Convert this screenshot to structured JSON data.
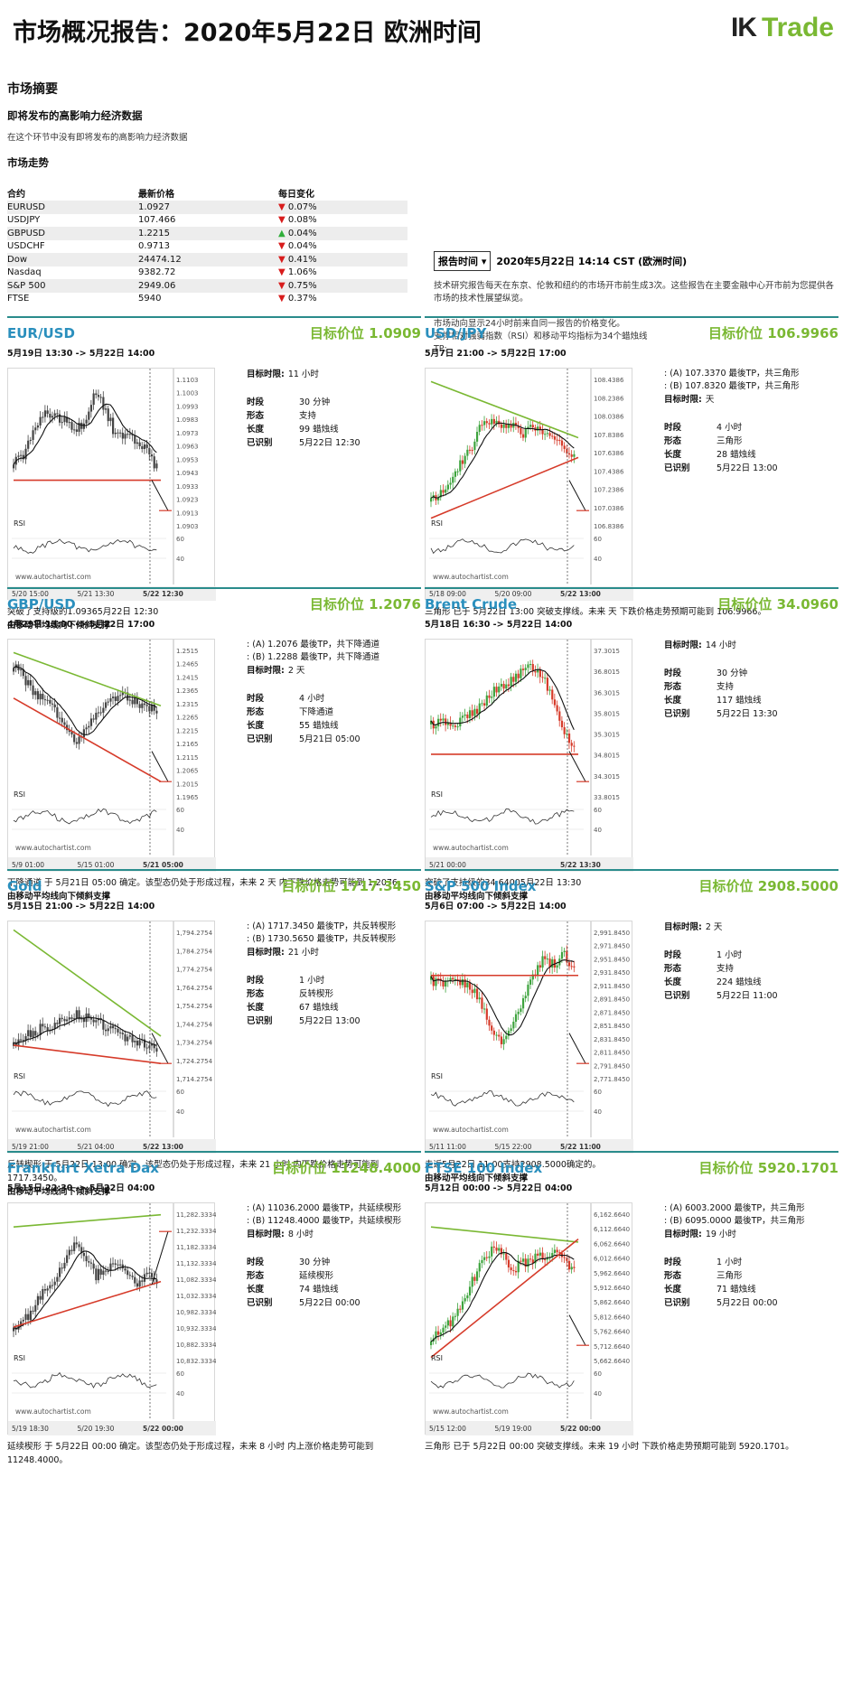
{
  "header": {
    "title": "市场概况报告：2020年5月22日 欧洲时间",
    "logo_mark": "IK",
    "logo_word": "Trade"
  },
  "summary": {
    "heading": "市场摘要",
    "sub_heading": "即将发布的高影响力经济数据",
    "no_data_note": "在这个环节中没有即将发布的高影响力经济数据",
    "trend_heading": "市场走势"
  },
  "quotes": {
    "headers": [
      "合约",
      "最新价格",
      "每日变化"
    ],
    "rows": [
      {
        "name": "EURUSD",
        "price": "1.0927",
        "arrow": "▼",
        "change": "0.07%",
        "dir": "down"
      },
      {
        "name": "USDJPY",
        "price": "107.466",
        "arrow": "▼",
        "change": "0.08%",
        "dir": "down"
      },
      {
        "name": "GBPUSD",
        "price": "1.2215",
        "arrow": "▲",
        "change": "0.04%",
        "dir": "up"
      },
      {
        "name": "USDCHF",
        "price": "0.9713",
        "arrow": "▼",
        "change": "0.04%",
        "dir": "down"
      },
      {
        "name": "Dow",
        "price": "24474.12",
        "arrow": "▼",
        "change": "0.41%",
        "dir": "down"
      },
      {
        "name": "Nasdaq",
        "price": "9382.72",
        "arrow": "▼",
        "change": "1.06%",
        "dir": "down"
      },
      {
        "name": "S&P 500",
        "price": "2949.06",
        "arrow": "▼",
        "change": "0.75%",
        "dir": "down"
      },
      {
        "name": "FTSE",
        "price": "5940",
        "arrow": "▼",
        "change": "0.37%",
        "dir": "down"
      }
    ]
  },
  "report": {
    "button": "报告时间",
    "time": "2020年5月22日 14:14 CST (欧洲时间)",
    "para1": "技术研究报告每天在东京、伦敦和纽约的市场开市前生成3次。这些报告在主要金融中心开市前为您提供各市场的技术性展望纵览。",
    "para2a": "市场动向显示24小时前来自同一报告的价格变化。",
    "para2b": "支撑相对强弱指数（RSI）和移动平均指标为34个蜡烛线",
    "para2c": "TP:"
  },
  "labels": {
    "target_prefix": "目标价位",
    "target_time": "目标时限:",
    "period": "时段",
    "pattern": "形态",
    "length": "长度",
    "identified": "已识别",
    "rsi": "RSI",
    "watermark": "www.autochartist.com"
  },
  "panels": [
    {
      "name": "EUR/USD",
      "target": "1.0909",
      "range": "5月19日 13:30 -> 5月22日 14:00",
      "tp_a": "",
      "tp_b": "",
      "target_time": "11 小时",
      "period": "30 分钟",
      "pattern": "支持",
      "length": "99 蜡烛线",
      "identified": "5月22日 12:30",
      "desc1": "突破了支持级的1.09365月22日 12:30",
      "desc2": "由移动平均线向下倾斜支撑",
      "y_ticks": [
        "1.1103",
        "1.1003",
        "1.0993",
        "1.0983",
        "1.0973",
        "1.0963",
        "1.0953",
        "1.0943",
        "1.0933",
        "1.0923",
        "1.0913",
        "1.0903"
      ],
      "x_ticks": [
        "5/20 15:00",
        "5/21 13:30",
        "5/22 12:30"
      ],
      "rsi_ticks": [
        "60",
        "40"
      ]
    },
    {
      "name": "USD/JPY",
      "target": "106.9966",
      "range": "5月7日 21:00 -> 5月22日 17:00",
      "tp_a": "(A) 107.3370 最後TP，共三角形",
      "tp_b": "(B) 107.8320 最後TP，共三角形",
      "target_time": "天",
      "period": "4 小时",
      "pattern": "三角形",
      "length": "28 蜡烛线",
      "identified": "5月22日 13:00",
      "desc1": "三角形 已于 5月22日 13:00 突破支撑线。未来 天 下跌价格走势预期可能到 106.9966。",
      "desc2": "",
      "y_ticks": [
        "108.4386",
        "108.2386",
        "108.0386",
        "107.8386",
        "107.6386",
        "107.4386",
        "107.2386",
        "107.0386",
        "106.8386"
      ],
      "x_ticks": [
        "5/18 09:00",
        "5/20 09:00",
        "5/22 13:00"
      ],
      "rsi_ticks": [
        "60",
        "40"
      ]
    },
    {
      "name": "GBP/USD",
      "target": "1.2076",
      "range": "4月29日 13:00 -> 5月22日 17:00",
      "tp_a": "(A) 1.2076 最後TP，共下降通道",
      "tp_b": "(B) 1.2288 最後TP，共下降通道",
      "target_time": "2 天",
      "period": "4 小时",
      "pattern": "下降通道",
      "length": "55 蜡烛线",
      "identified": "5月21日 05:00",
      "desc1": "下降通道 于 5月21日 05:00 确定。该型态仍处于形成过程，未来 2 天 内下跌价格走势可能到 1.2076。",
      "desc2": "由移动平均线向下倾斜支撑",
      "y_ticks": [
        "1.2515",
        "1.2465",
        "1.2415",
        "1.2365",
        "1.2315",
        "1.2265",
        "1.2215",
        "1.2165",
        "1.2115",
        "1.2065",
        "1.2015",
        "1.1965"
      ],
      "x_ticks": [
        "5/9 01:00",
        "5/15 01:00",
        "5/21 05:00"
      ],
      "rsi_ticks": [
        "60",
        "40"
      ]
    },
    {
      "name": "Brent Crude",
      "target": "34.0960",
      "range": "5月18日 16:30 -> 5月22日 14:00",
      "tp_a": "",
      "tp_b": "",
      "target_time": "14 小时",
      "period": "30 分钟",
      "pattern": "支持",
      "length": "117 蜡烛线",
      "identified": "5月22日 13:30",
      "desc1": "突破了支持级的34.64005月22日 13:30",
      "desc2": "由移动平均线向下倾斜支撑",
      "y_ticks": [
        "37.3015",
        "36.8015",
        "36.3015",
        "35.8015",
        "35.3015",
        "34.8015",
        "34.3015",
        "33.8015"
      ],
      "x_ticks": [
        "5/21 00:00",
        "5/22 13:30"
      ],
      "rsi_ticks": [
        "60",
        "40"
      ]
    },
    {
      "name": "Gold",
      "target": "1717.3450",
      "range": "5月15日 21:00 -> 5月22日 14:00",
      "tp_a": "(A) 1717.3450 最後TP，共反转楔形",
      "tp_b": "(B) 1730.5650 最後TP，共反转楔形",
      "target_time": "21 小时",
      "period": "1 小时",
      "pattern": "反转楔形",
      "length": "67 蜡烛线",
      "identified": "5月22日 13:00",
      "desc1": "反转楔形 于 5月22日 13:00 确定。该型态仍处于形成过程，未来 21 小时 内下跌价格走势可能到 1717.3450。",
      "desc2": "由移动平均线向下倾斜支撑",
      "y_ticks": [
        "1,794.2754",
        "1,784.2754",
        "1,774.2754",
        "1,764.2754",
        "1,754.2754",
        "1,744.2754",
        "1,734.2754",
        "1,724.2754",
        "1,714.2754"
      ],
      "x_ticks": [
        "5/19 21:00",
        "5/21 04:00",
        "5/22 13:00"
      ],
      "rsi_ticks": [
        "60",
        "40"
      ]
    },
    {
      "name": "S&P 500 Index",
      "target": "2908.5000",
      "range": "5月6日 07:00 -> 5月22日 14:00",
      "tp_a": "",
      "tp_b": "",
      "target_time": "2 天",
      "period": "1 小时",
      "pattern": "支持",
      "length": "224 蜡烛线",
      "identified": "5月22日 11:00",
      "desc1": "走近5月22日 11:00支持2908.5000确定的。",
      "desc2": "由移动平均线向下倾斜支撑",
      "y_ticks": [
        "2,991.8450",
        "2,971.8450",
        "2,951.8450",
        "2,931.8450",
        "2,911.8450",
        "2,891.8450",
        "2,871.8450",
        "2,851.8450",
        "2,831.8450",
        "2,811.8450",
        "2,791.8450",
        "2,771.8450"
      ],
      "x_ticks": [
        "5/11 11:00",
        "5/15 22:00",
        "5/22 11:00"
      ],
      "rsi_ticks": [
        "60",
        "40"
      ]
    },
    {
      "name": "Frankfurt Xetra Dax",
      "target": "11248.4000",
      "range": "5月15日 22:30 -> 5月22日 04:00",
      "tp_a": "(A) 11036.2000 最後TP，共延续楔形",
      "tp_b": "(B) 11248.4000 最後TP，共延续楔形",
      "target_time": "8 小时",
      "period": "30 分钟",
      "pattern": "延续楔形",
      "length": "74 蜡烛线",
      "identified": "5月22日 00:00",
      "desc1": "延续楔形 于 5月22日 00:00 确定。该型态仍处于形成过程，未来 8 小时 内上涨价格走势可能到 11248.4000。",
      "desc2": "",
      "y_ticks": [
        "11,282.3334",
        "11,232.3334",
        "11,182.3334",
        "11,132.3334",
        "11,082.3334",
        "11,032.3334",
        "10,982.3334",
        "10,932.3334",
        "10,882.3334",
        "10,832.3334"
      ],
      "x_ticks": [
        "5/19 18:30",
        "5/20 19:30",
        "5/22 00:00"
      ],
      "rsi_ticks": [
        "60",
        "40"
      ]
    },
    {
      "name": "FTSE 100 Index",
      "target": "5920.1701",
      "range": "5月12日 00:00 -> 5月22日 04:00",
      "tp_a": "(A) 6003.2000 最後TP，共三角形",
      "tp_b": "(B) 6095.0000 最後TP，共三角形",
      "target_time": "19 小时",
      "period": "1 小时",
      "pattern": "三角形",
      "length": "71 蜡烛线",
      "identified": "5月22日 00:00",
      "desc1": "三角形 已于 5月22日 00:00 突破支撑线。未来 19 小时 下跌价格走势预期可能到 5920.1701。",
      "desc2": "",
      "y_ticks": [
        "6,162.6640",
        "6,112.6640",
        "6,062.6640",
        "6,012.6640",
        "5,962.6640",
        "5,912.6640",
        "5,862.6640",
        "5,812.6640",
        "5,762.6640",
        "5,712.6640",
        "5,662.6640"
      ],
      "x_ticks": [
        "5/15 12:00",
        "5/19 19:00",
        "5/22 00:00"
      ],
      "rsi_ticks": [
        "60",
        "40"
      ]
    }
  ]
}
